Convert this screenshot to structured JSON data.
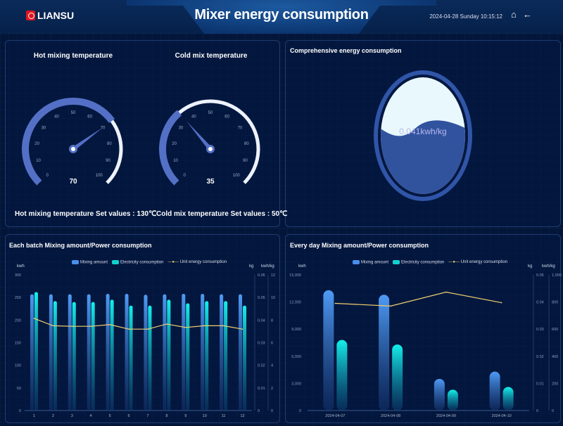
{
  "header": {
    "logo_text": "LIANSU",
    "title": "Mixer energy consumption",
    "datetime": "2024-04-28 Sunday 10:15:12",
    "home_icon": "home-icon",
    "back_icon": "arrow-left-icon"
  },
  "gauges": [
    {
      "title": "Hot mixing temperature",
      "value": 70,
      "value_label": "70",
      "min": 0,
      "max": 100,
      "setpoint_label": "Hot mixing temperature Set values : 130℃"
    },
    {
      "title": "Cold mix temperature",
      "value": 35,
      "value_label": "35",
      "min": 0,
      "max": 100,
      "setpoint_label": "Cold mix temperature Set values : 50℃"
    }
  ],
  "liquid": {
    "title": "Comprehensive energy consumption",
    "label": "0.041kwh/kg",
    "fill_level": 0.55
  },
  "colors": {
    "mixing": "#4a8fea",
    "electricity": "#13e0e0",
    "unit": "#f0d070",
    "gauge": "#5470c6"
  },
  "chart_data": [
    {
      "type": "bar",
      "title": "Each batch Mixing amount/Power consumption",
      "legend": [
        "Mixing amount",
        "Electricity consumption",
        "Unit energy consumption"
      ],
      "categories": [
        "1",
        "2",
        "3",
        "4",
        "5",
        "6",
        "7",
        "8",
        "9",
        "10",
        "11",
        "12"
      ],
      "y_left": {
        "label": "kwh",
        "ylim": [
          0,
          300
        ],
        "ticks": [
          "0",
          "50",
          "100",
          "150",
          "200",
          "250",
          "300"
        ]
      },
      "y_right1": {
        "label": "kg",
        "ylim": [
          0,
          0.06
        ],
        "ticks": [
          "0",
          "0.01",
          "0.02",
          "0.03",
          "0.04",
          "0.05",
          "0.06"
        ]
      },
      "y_right2": {
        "label": "kwh/kg",
        "ylim": [
          0,
          12
        ],
        "ticks": [
          "0",
          "2",
          "4",
          "6",
          "8",
          "10",
          "12"
        ]
      },
      "series": [
        {
          "name": "Mixing amount",
          "type": "bar",
          "axis": "left",
          "values": [
            257,
            257,
            257,
            257,
            258,
            258,
            256,
            257,
            258,
            258,
            257,
            257
          ]
        },
        {
          "name": "Electricity consumption",
          "type": "bar",
          "axis": "left",
          "values": [
            262,
            242,
            240,
            240,
            245,
            232,
            232,
            245,
            237,
            242,
            242,
            232
          ]
        },
        {
          "name": "Unit energy consumption",
          "type": "line",
          "axis": "right2",
          "values": [
            8.15,
            7.5,
            7.45,
            7.45,
            7.6,
            7.2,
            7.2,
            7.65,
            7.35,
            7.5,
            7.5,
            7.2
          ]
        }
      ]
    },
    {
      "type": "bar",
      "title": "Every day Mixing amount/Power consumption",
      "legend": [
        "Mixing amount",
        "Electricity consumption",
        "Unit energy consumption"
      ],
      "categories": [
        "2024-04-07",
        "2024-04-08",
        "2024-04-09",
        "2024-04-10"
      ],
      "y_left": {
        "label": "kwh",
        "ylim": [
          0,
          15000
        ],
        "ticks": [
          "0",
          "3,000",
          "6,000",
          "9,000",
          "12,000",
          "15,000"
        ]
      },
      "y_right1": {
        "label": "kg",
        "ylim": [
          0,
          0.05
        ],
        "ticks": [
          "0",
          "0.01",
          "0.02",
          "0.03",
          "0.04",
          "0.05"
        ]
      },
      "y_right2": {
        "label": "kwh/kg",
        "ylim": [
          0,
          1000
        ],
        "ticks": [
          "0",
          "200",
          "400",
          "600",
          "800",
          "1,000"
        ]
      },
      "series": [
        {
          "name": "Mixing amount",
          "type": "bar",
          "axis": "left",
          "values": [
            13300,
            12800,
            3500,
            4300
          ]
        },
        {
          "name": "Electricity consumption",
          "type": "bar",
          "axis": "left",
          "values": [
            7800,
            7300,
            2300,
            2600
          ]
        },
        {
          "name": "Unit energy consumption",
          "type": "line",
          "axis": "right2",
          "values": [
            790,
            770,
            873,
            795
          ]
        }
      ]
    }
  ]
}
